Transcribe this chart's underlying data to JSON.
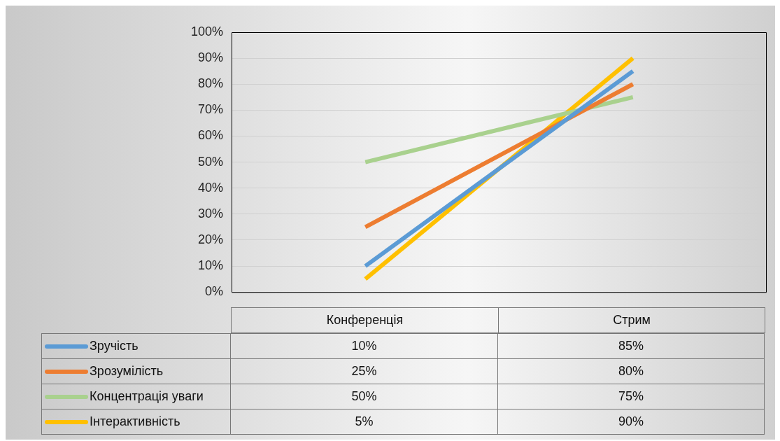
{
  "chart_data": {
    "type": "line",
    "categories": [
      "Конференція",
      "Стрим"
    ],
    "series": [
      {
        "name": "Зручість",
        "color": "#5b9bd5",
        "values": [
          10,
          85
        ],
        "value_labels": [
          "10%",
          "85%"
        ]
      },
      {
        "name": "Зрозумілість",
        "color": "#ed7d31",
        "values": [
          25,
          80
        ],
        "value_labels": [
          "25%",
          "80%"
        ]
      },
      {
        "name": "Концентрація уваги",
        "color": "#a9d18e",
        "values": [
          50,
          75
        ],
        "value_labels": [
          "50%",
          "75%"
        ]
      },
      {
        "name": "Інтерактивність",
        "color": "#ffc000",
        "values": [
          5,
          90
        ],
        "value_labels": [
          "5%",
          "90%"
        ]
      }
    ],
    "ylim": [
      0,
      100
    ],
    "yticks": [
      {
        "value": 0,
        "label": "0%"
      },
      {
        "value": 10,
        "label": "10%"
      },
      {
        "value": 20,
        "label": "20%"
      },
      {
        "value": 30,
        "label": "30%"
      },
      {
        "value": 40,
        "label": "40%"
      },
      {
        "value": 50,
        "label": "50%"
      },
      {
        "value": 60,
        "label": "60%"
      },
      {
        "value": 70,
        "label": "70%"
      },
      {
        "value": 80,
        "label": "80%"
      },
      {
        "value": 90,
        "label": "90%"
      },
      {
        "value": 100,
        "label": "100%"
      }
    ],
    "grid": "y",
    "legend": "bottom"
  }
}
